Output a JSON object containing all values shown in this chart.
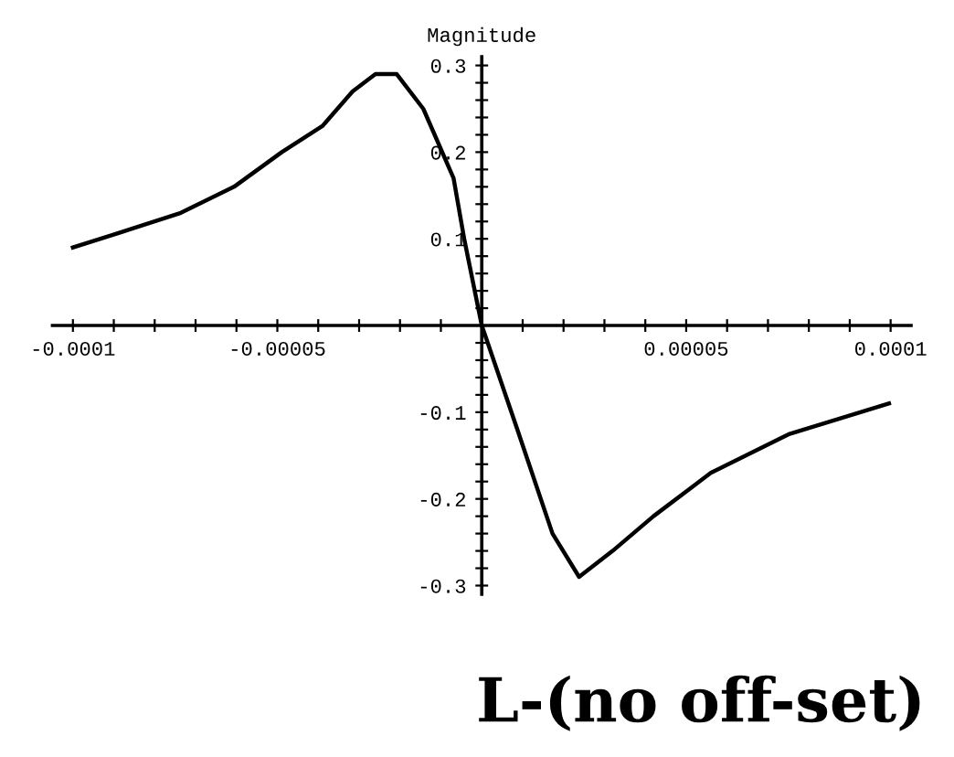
{
  "chart_data": {
    "type": "line",
    "ylabel": "Magnitude",
    "annotations": [
      "L-(no off-set)"
    ],
    "x": [
      -0.0001,
      -8.66e-05,
      -7.36e-05,
      -6.06e-05,
      -4.89e-05,
      -3.9e-05,
      -3.16e-05,
      -2.6e-05,
      -2.08e-05,
      -1.43e-05,
      -6.9e-06,
      -4.3e-06,
      0,
      8.7e-06,
      1.73e-05,
      2.38e-05,
      3.2e-05,
      4.2e-05,
      5.6e-05,
      7.53e-05,
      9.96e-05
    ],
    "series": [
      {
        "color": "#000000",
        "values": [
          0.09,
          0.11,
          0.13,
          0.16,
          0.2,
          0.23,
          0.27,
          0.29,
          0.29,
          0.25,
          0.17,
          0.1,
          0,
          -0.12,
          -0.24,
          -0.29,
          -0.26,
          -0.22,
          -0.17,
          -0.125,
          -0.09
        ]
      }
    ],
    "xlim": [
      -0.000105,
      0.000105
    ],
    "ylim": [
      -0.31,
      0.31
    ],
    "xticks": [
      {
        "value": -0.0001,
        "label": "-0.0001"
      },
      {
        "value": -9e-05,
        "label": null
      },
      {
        "value": -8e-05,
        "label": null
      },
      {
        "value": -7e-05,
        "label": null
      },
      {
        "value": -6e-05,
        "label": null
      },
      {
        "value": -5e-05,
        "label": "-0.00005"
      },
      {
        "value": -4e-05,
        "label": null
      },
      {
        "value": -3e-05,
        "label": null
      },
      {
        "value": -2e-05,
        "label": null
      },
      {
        "value": -1e-05,
        "label": null
      },
      {
        "value": 1e-05,
        "label": null
      },
      {
        "value": 2e-05,
        "label": null
      },
      {
        "value": 3e-05,
        "label": null
      },
      {
        "value": 4e-05,
        "label": null
      },
      {
        "value": 5e-05,
        "label": "0.00005"
      },
      {
        "value": 6e-05,
        "label": null
      },
      {
        "value": 7e-05,
        "label": null
      },
      {
        "value": 8e-05,
        "label": null
      },
      {
        "value": 9e-05,
        "label": null
      },
      {
        "value": 0.0001,
        "label": "0.0001"
      }
    ],
    "yticks": [
      -0.3,
      {
        "value": -0.28,
        "label": null
      },
      {
        "value": -0.26,
        "label": null
      },
      {
        "value": -0.24,
        "label": null
      },
      {
        "value": -0.22,
        "label": null
      },
      -0.2,
      {
        "value": -0.18,
        "label": null
      },
      {
        "value": -0.16,
        "label": null
      },
      {
        "value": -0.14,
        "label": null
      },
      {
        "value": -0.12,
        "label": null
      },
      -0.1,
      {
        "value": -0.08,
        "label": null
      },
      {
        "value": -0.06,
        "label": null
      },
      {
        "value": -0.04,
        "label": null
      },
      {
        "value": -0.02,
        "label": null
      },
      {
        "value": 0.02,
        "label": null
      },
      {
        "value": 0.04,
        "label": null
      },
      {
        "value": 0.06,
        "label": null
      },
      {
        "value": 0.08,
        "label": null
      },
      0.1,
      {
        "value": 0.12,
        "label": null
      },
      {
        "value": 0.14,
        "label": null
      },
      {
        "value": 0.16,
        "label": null
      },
      {
        "value": 0.18,
        "label": null
      },
      0.2,
      {
        "value": 0.22,
        "label": null
      },
      {
        "value": 0.24,
        "label": null
      },
      {
        "value": 0.26,
        "label": null
      },
      {
        "value": 0.28,
        "label": null
      },
      0.3
    ],
    "grid": false,
    "legend": false,
    "marker": "none",
    "line_style": "solid"
  }
}
